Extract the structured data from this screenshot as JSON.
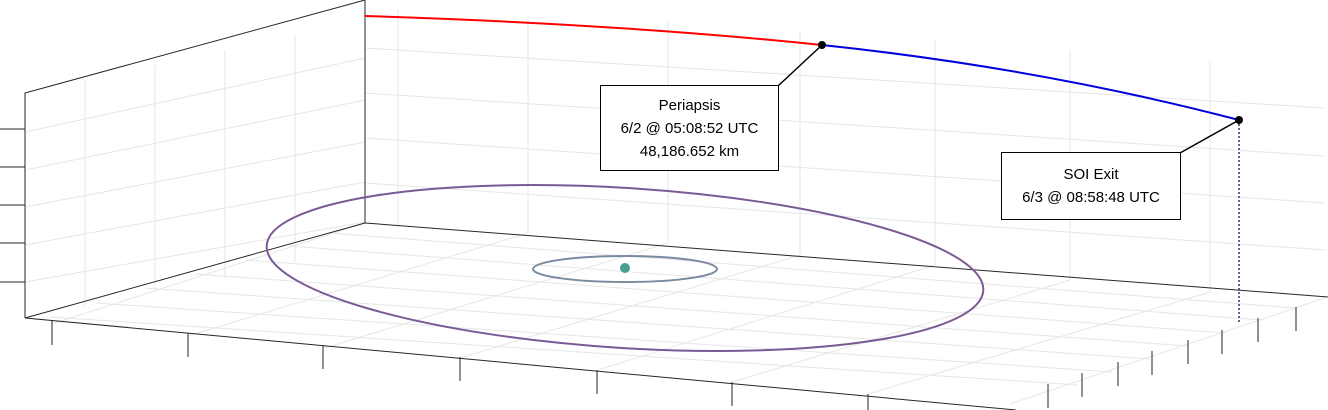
{
  "annotations": {
    "periapsis": {
      "title": "Periapsis",
      "time": "6/2 @ 05:08:52 UTC",
      "distance": "48,186.652 km"
    },
    "soi_exit": {
      "title": "SOI Exit",
      "time": "6/3 @ 08:58:48 UTC"
    }
  },
  "colors": {
    "incoming_trajectory": "#ff0000",
    "outgoing_trajectory": "#0000dd",
    "large_orbit": "#7a5a96",
    "small_orbit": "#7a8aa0",
    "central_body": "#4a9e8e",
    "event_marker": "#000000",
    "drop_line": "#1f3a6a"
  }
}
